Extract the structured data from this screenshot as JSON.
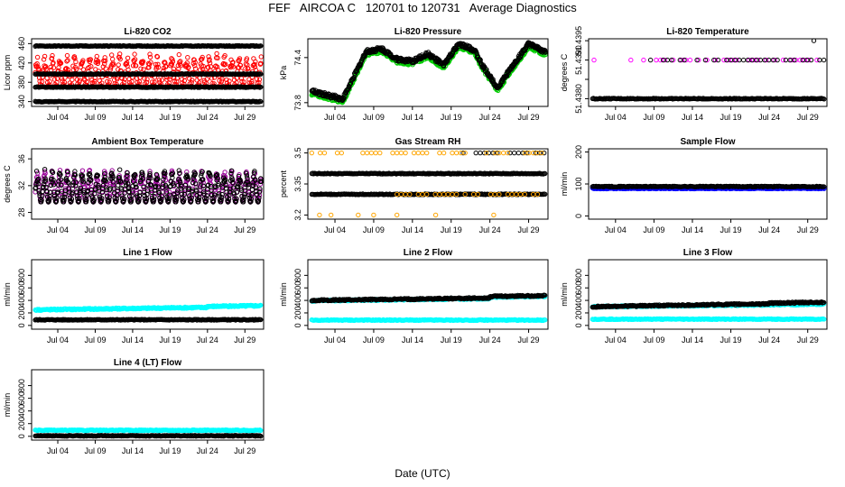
{
  "page": {
    "title": "FEF   AIRCOA C   120701 to 120731   Average Diagnostics",
    "xlabel": "Date (UTC)"
  },
  "colors": {
    "black": "#000000",
    "red": "#ff0000",
    "magenta": "#ff00ff",
    "green": "#00cc00",
    "blue": "#0000ff",
    "cyan": "#00ffff",
    "orange": "#ffa500"
  },
  "chart_data": [
    {
      "id": "co2",
      "type": "scatter",
      "title": "Li-820 CO2",
      "ylabel": "Licor ppm",
      "ylim": [
        330,
        470
      ],
      "yticks": [
        340,
        380,
        420,
        460
      ],
      "xticks": [
        "Jul 04",
        "Jul 09",
        "Jul 14",
        "Jul 19",
        "Jul 24",
        "Jul 29"
      ],
      "series": [
        {
          "name": "red",
          "color": "#ff0000",
          "pattern": "band",
          "lo": 355,
          "hi": 455
        },
        {
          "name": "black-1",
          "color": "#000000",
          "level": 455
        },
        {
          "name": "black-2",
          "color": "#000000",
          "level": 397
        },
        {
          "name": "black-3",
          "color": "#000000",
          "level": 370
        },
        {
          "name": "black-4",
          "color": "#000000",
          "level": 340
        }
      ]
    },
    {
      "id": "pressure",
      "type": "scatter",
      "title": "Li-820 Pressure",
      "ylabel": "kPa",
      "ylim": [
        73.75,
        74.65
      ],
      "yticks": [
        73.8,
        74.4
      ],
      "xticks": [
        "Jul 04",
        "Jul 09",
        "Jul 14",
        "Jul 19",
        "Jul 24",
        "Jul 29"
      ],
      "series": [
        {
          "name": "green",
          "color": "#00cc00",
          "pattern": "wave",
          "offset": -0.03
        },
        {
          "name": "black",
          "color": "#000000",
          "pattern": "wave",
          "offset": 0
        }
      ],
      "curve": [
        [
          1,
          73.95
        ],
        [
          3,
          73.9
        ],
        [
          5,
          73.85
        ],
        [
          6,
          74.05
        ],
        [
          8,
          74.48
        ],
        [
          10,
          74.52
        ],
        [
          12,
          74.38
        ],
        [
          14,
          74.35
        ],
        [
          16,
          74.45
        ],
        [
          18,
          74.3
        ],
        [
          20,
          74.58
        ],
        [
          22,
          74.5
        ],
        [
          23,
          74.3
        ],
        [
          25,
          74.0
        ],
        [
          27,
          74.3
        ],
        [
          29,
          74.58
        ],
        [
          31,
          74.48
        ]
      ]
    },
    {
      "id": "licor_temp",
      "type": "scatter",
      "title": "Li-820 Temperature",
      "ylabel": "degrees C",
      "ylim": [
        51.4378,
        51.43955
      ],
      "yticks": [
        51.438,
        51.4385,
        51.439,
        51.4395
      ],
      "ytick_labels": [
        "51.4380",
        "",
        "51.4390",
        "51.4395"
      ],
      "xticks": [
        "Jul 04",
        "Jul 09",
        "Jul 14",
        "Jul 19",
        "Jul 24",
        "Jul 29"
      ],
      "series": [
        {
          "name": "black-base",
          "color": "#000000",
          "level": 51.438
        },
        {
          "name": "magenta-mid",
          "color": "#ff00ff",
          "level": 51.439,
          "pattern": "sparse",
          "from": 6
        },
        {
          "name": "black-mid",
          "color": "#000000",
          "level": 51.439,
          "pattern": "sparse",
          "from": 8
        },
        {
          "name": "black-outlier",
          "color": "#000000",
          "points": [
            [
              29.8,
              51.4395
            ]
          ]
        },
        {
          "name": "magenta-early",
          "color": "#ff00ff",
          "points": [
            [
              1.2,
              51.439
            ]
          ]
        }
      ]
    },
    {
      "id": "ambient_temp",
      "type": "scatter",
      "title": "Ambient Box Temperature",
      "ylabel": "degrees C",
      "ylim": [
        27,
        37.5
      ],
      "yticks": [
        28,
        32,
        36
      ],
      "xticks": [
        "Jul 04",
        "Jul 09",
        "Jul 14",
        "Jul 19",
        "Jul 24",
        "Jul 29"
      ],
      "series": [
        {
          "name": "magenta",
          "color": "#990099",
          "pattern": "band",
          "lo": 28.5,
          "hi": 35.5
        },
        {
          "name": "black",
          "color": "#000000",
          "pattern": "band",
          "lo": 28.5,
          "hi": 35.5
        }
      ]
    },
    {
      "id": "rh",
      "type": "scatter",
      "title": "Gas Stream RH",
      "ylabel": "percent",
      "ylim": [
        3.18,
        3.52
      ],
      "yticks": [
        3.2,
        3.35,
        3.5
      ],
      "xticks": [
        "Jul 04",
        "Jul 09",
        "Jul 14",
        "Jul 19",
        "Jul 24",
        "Jul 29"
      ],
      "series": [
        {
          "name": "black-1",
          "color": "#000000",
          "level": 3.4
        },
        {
          "name": "black-2",
          "color": "#000000",
          "level": 3.3
        },
        {
          "name": "black-3",
          "color": "#000000",
          "level": 3.5,
          "pattern": "sparse",
          "from": 20
        },
        {
          "name": "orange-hi",
          "color": "#ffa500",
          "level": 3.5,
          "pattern": "sparse",
          "from": 0
        },
        {
          "name": "orange-mid",
          "color": "#ffa500",
          "level": 3.3,
          "pattern": "sparse",
          "from": 12
        },
        {
          "name": "orange-lo",
          "color": "#ffa500",
          "points": [
            [
              2,
              3.2
            ],
            [
              3.5,
              3.2
            ],
            [
              7,
              3.2
            ],
            [
              9,
              3.2
            ],
            [
              12,
              3.2
            ],
            [
              17,
              3.2
            ],
            [
              24.5,
              3.2
            ]
          ]
        }
      ]
    },
    {
      "id": "sample_flow",
      "type": "scatter",
      "title": "Sample Flow",
      "ylabel": "ml/min",
      "ylim": [
        -10,
        210
      ],
      "yticks": [
        0,
        100,
        200
      ],
      "xticks": [
        "Jul 04",
        "Jul 09",
        "Jul 14",
        "Jul 19",
        "Jul 24",
        "Jul 29"
      ],
      "series": [
        {
          "name": "blue",
          "color": "#0000ff",
          "level": 86
        },
        {
          "name": "black",
          "color": "#000000",
          "level": 92
        }
      ]
    },
    {
      "id": "line1",
      "type": "scatter",
      "title": "Line 1 Flow",
      "ylabel": "ml/min",
      "ylim": [
        -60,
        1050
      ],
      "yticks": [
        0,
        200,
        400,
        600,
        800
      ],
      "xticks": [
        "Jul 04",
        "Jul 09",
        "Jul 14",
        "Jul 19",
        "Jul 24",
        "Jul 29"
      ],
      "series": [
        {
          "name": "cyan",
          "color": "#00ffff",
          "pattern": "ramp",
          "start": 250,
          "end": 300,
          "step_day": 24,
          "step": 30
        },
        {
          "name": "black",
          "color": "#000000",
          "level": 90
        }
      ]
    },
    {
      "id": "line2",
      "type": "scatter",
      "title": "Line 2 Flow",
      "ylabel": "ml/min",
      "ylim": [
        -60,
        1050
      ],
      "yticks": [
        0,
        200,
        400,
        600,
        800
      ],
      "xticks": [
        "Jul 04",
        "Jul 09",
        "Jul 14",
        "Jul 19",
        "Jul 24",
        "Jul 29"
      ],
      "series": [
        {
          "name": "cyan",
          "color": "#00ffff",
          "level": 85
        },
        {
          "name": "cyan-2",
          "color": "#00ffff",
          "pattern": "ramp",
          "start": 395,
          "end": 440,
          "step_day": 24,
          "step": 50
        },
        {
          "name": "black",
          "color": "#000000",
          "pattern": "ramp",
          "start": 400,
          "end": 450,
          "step_day": 24,
          "step": 50
        }
      ]
    },
    {
      "id": "line3",
      "type": "scatter",
      "title": "Line 3 Flow",
      "ylabel": "ml/min",
      "ylim": [
        -60,
        1050
      ],
      "yticks": [
        0,
        200,
        400,
        600,
        800
      ],
      "xticks": [
        "Jul 04",
        "Jul 09",
        "Jul 14",
        "Jul 19",
        "Jul 24",
        "Jul 29"
      ],
      "series": [
        {
          "name": "cyan",
          "color": "#00ffff",
          "level": 100
        },
        {
          "name": "cyan-2",
          "color": "#00ffff",
          "pattern": "ramp",
          "start": 300,
          "end": 340,
          "step_day": 24,
          "step": 0
        },
        {
          "name": "black",
          "color": "#000000",
          "pattern": "ramp",
          "start": 300,
          "end": 360,
          "step_day": 24,
          "step": 20
        }
      ]
    },
    {
      "id": "line4",
      "type": "scatter",
      "title": "Line 4 (LT) Flow",
      "ylabel": "ml/min",
      "ylim": [
        -60,
        1050
      ],
      "yticks": [
        0,
        200,
        400,
        600,
        800
      ],
      "xticks": [
        "Jul 04",
        "Jul 09",
        "Jul 14",
        "Jul 19",
        "Jul 24",
        "Jul 29"
      ],
      "series": [
        {
          "name": "cyan",
          "color": "#00ffff",
          "level": 95
        },
        {
          "name": "black",
          "color": "#000000",
          "level": 8
        }
      ]
    }
  ]
}
